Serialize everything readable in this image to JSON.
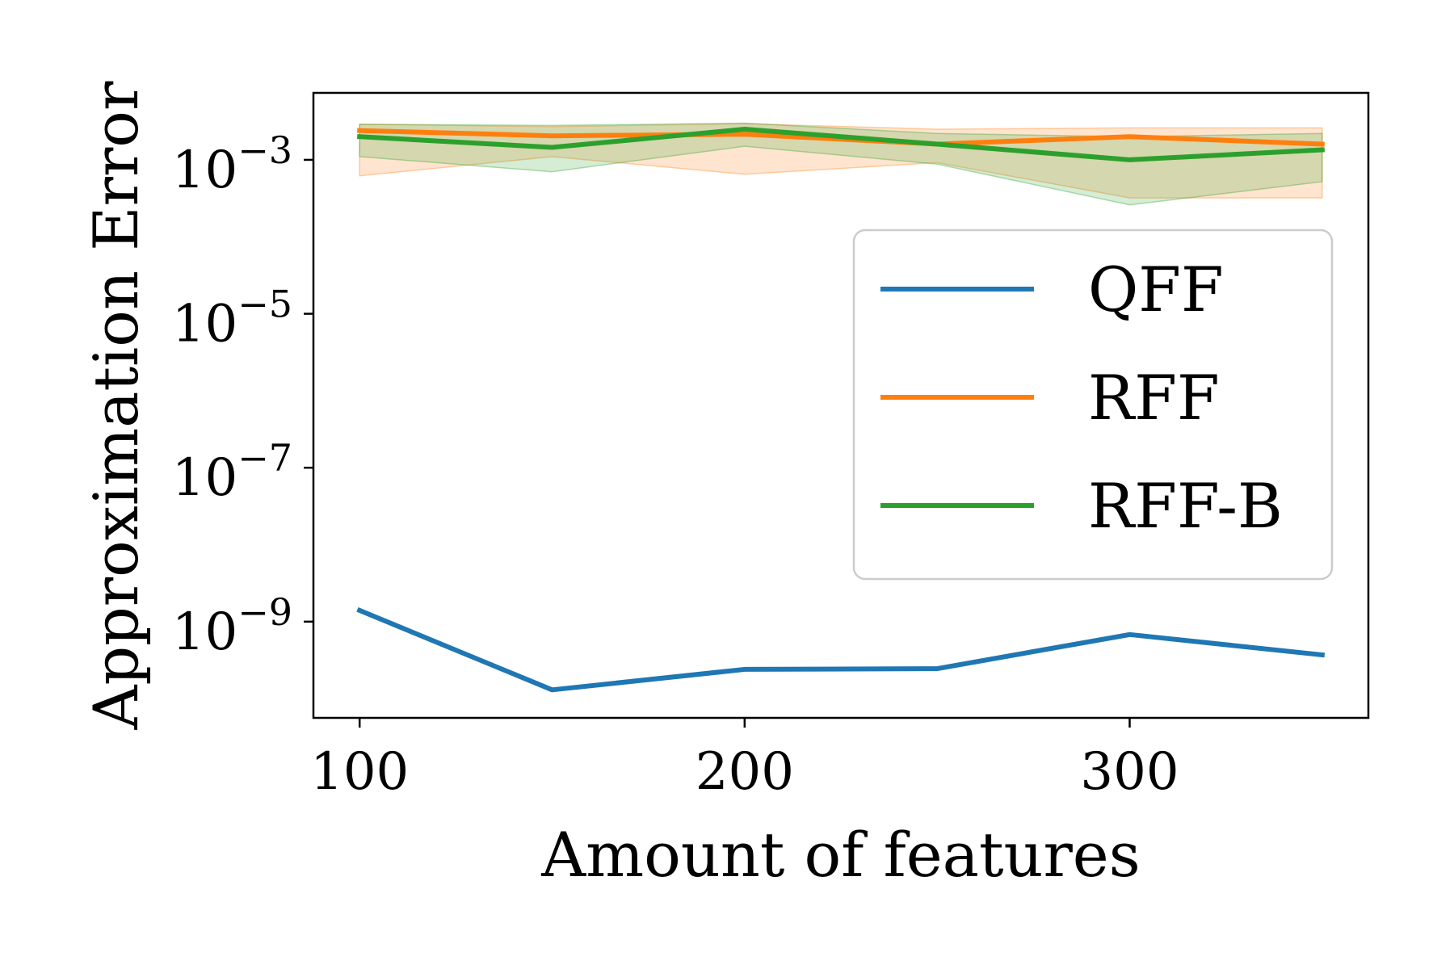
{
  "chart_data": {
    "type": "line",
    "title": "",
    "xlabel": "Amount of features",
    "ylabel": "Approximation Error",
    "yscale": "log",
    "xlim": [
      88,
      362
    ],
    "ylim_log10": [
      -10.25,
      -2.13
    ],
    "x": [
      100,
      150,
      200,
      250,
      300,
      350
    ],
    "x_ticks": [
      {
        "value": 100,
        "label": "100"
      },
      {
        "value": 200,
        "label": "200"
      },
      {
        "value": 300,
        "label": "300"
      }
    ],
    "y_ticks": [
      {
        "exp": -3,
        "base": "10",
        "sup": "−3"
      },
      {
        "exp": -5,
        "base": "10",
        "sup": "−5"
      },
      {
        "exp": -7,
        "base": "10",
        "sup": "−7"
      },
      {
        "exp": -9,
        "base": "10",
        "sup": "−9"
      }
    ],
    "grid": false,
    "legend_position": "center-right",
    "series": [
      {
        "name": "QFF",
        "color": "#1f77b4",
        "values": [
          1.4e-09,
          1.3e-10,
          2.4e-10,
          2.45e-10,
          6.8e-10,
          3.7e-10
        ]
      },
      {
        "name": "RFF",
        "color": "#ff7f0e",
        "values": [
          0.0024,
          0.00205,
          0.00215,
          0.0016,
          0.002,
          0.0016
        ],
        "band_low": [
          0.00062,
          0.0011,
          0.00065,
          0.00092,
          0.00032,
          0.00032
        ],
        "band_high": [
          0.0029,
          0.0027,
          0.00295,
          0.0025,
          0.0026,
          0.0026
        ]
      },
      {
        "name": "RFF-B",
        "color": "#2ca02c",
        "values": [
          0.002,
          0.00145,
          0.0025,
          0.0016,
          0.001,
          0.00135
        ],
        "band_low": [
          0.0011,
          0.0007,
          0.0015,
          0.00088,
          0.00026,
          0.00052
        ],
        "band_high": [
          0.0029,
          0.0028,
          0.003,
          0.0022,
          0.002,
          0.0022
        ]
      }
    ]
  }
}
